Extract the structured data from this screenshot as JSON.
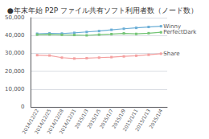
{
  "chart_data": {
    "type": "line",
    "title": "●年末年始 P2P ファイル共有ソフト利用者数（ノード数）",
    "categories": [
      "2014/12/22",
      "2014/12/25",
      "2014/12/28",
      "2014/12/31",
      "2015/1/3",
      "2015/1/5",
      "2015/1/7",
      "2015/1/9",
      "2015/1/11",
      "2015/1/13",
      "2015/1/4"
    ],
    "series": [
      {
        "name": "Winny",
        "color": "#6baed6",
        "values": [
          41000,
          41200,
          41100,
          41500,
          42000,
          42500,
          43200,
          43800,
          44300,
          44800,
          45200
        ]
      },
      {
        "name": "PerfectDark",
        "color": "#74c476",
        "values": [
          40500,
          40600,
          40400,
          40300,
          40100,
          40500,
          40800,
          41200,
          40900,
          41300,
          41800
        ]
      },
      {
        "name": "Share",
        "color": "#f4a0a0",
        "values": [
          29000,
          28800,
          27600,
          27100,
          27300,
          27600,
          27900,
          28300,
          28700,
          29200,
          29800
        ]
      }
    ],
    "marker": "square",
    "ylim": [
      0,
      50000
    ],
    "yticks": [
      0,
      {
        "value": 10000,
        "label": "10,000"
      },
      {
        "value": 20000,
        "label": "20,000"
      },
      {
        "value": 30000,
        "label": "30,000"
      },
      {
        "value": 40000,
        "label": "40,000"
      },
      {
        "value": 50000,
        "label": "50,000"
      }
    ],
    "grid": true
  }
}
